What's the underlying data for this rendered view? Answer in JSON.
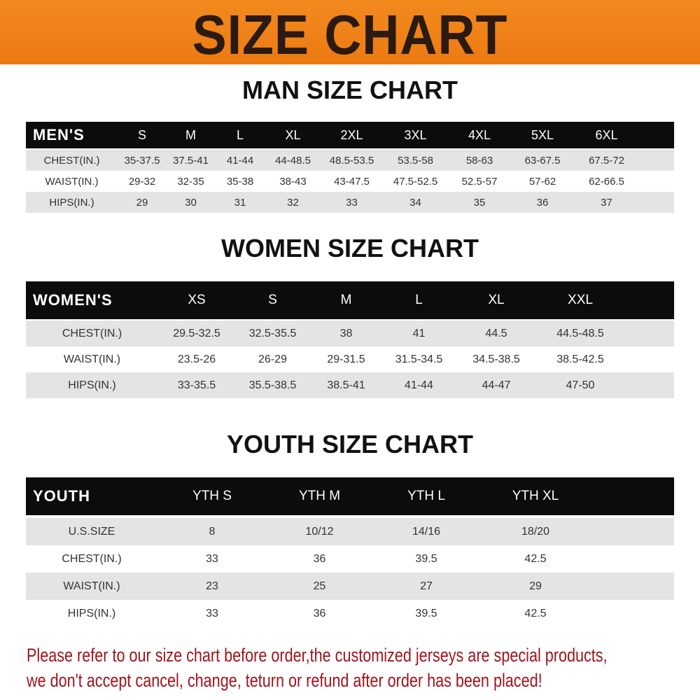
{
  "banner": {
    "title": "SIZE CHART",
    "color": "#f08418"
  },
  "men": {
    "title": "MAN SIZE CHART",
    "header": [
      "MEN'S",
      "S",
      "M",
      "L",
      "XL",
      "2XL",
      "3XL",
      "4XL",
      "5XL",
      "6XL"
    ],
    "rows": [
      [
        "CHEST(IN.)",
        "35-37.5",
        "37.5-41",
        "41-44",
        "44-48.5",
        "48.5-53.5",
        "53.5-58",
        "58-63",
        "63-67.5",
        "67.5-72"
      ],
      [
        "WAIST(IN.)",
        "29-32",
        "32-35",
        "35-38",
        "38-43",
        "43-47.5",
        "47.5-52.5",
        "52.5-57",
        "57-62",
        "62-66.5"
      ],
      [
        "HIPS(IN.)",
        "29",
        "30",
        "31",
        "32",
        "33",
        "34",
        "35",
        "36",
        "37"
      ]
    ]
  },
  "women": {
    "title": "WOMEN SIZE CHART",
    "header": [
      "WOMEN'S",
      "XS",
      "S",
      "M",
      "L",
      "XL",
      "XXL"
    ],
    "rows": [
      [
        "CHEST(IN.)",
        "29.5-32.5",
        "32.5-35.5",
        "38",
        "41",
        "44.5",
        "44.5-48.5"
      ],
      [
        "WAIST(IN.)",
        "23.5-26",
        "26-29",
        "29-31.5",
        "31.5-34.5",
        "34.5-38.5",
        "38.5-42.5"
      ],
      [
        "HIPS(IN.)",
        "33-35.5",
        "35.5-38.5",
        "38.5-41",
        "41-44",
        "44-47",
        "47-50"
      ]
    ]
  },
  "youth": {
    "title": "YOUTH SIZE CHART",
    "header": [
      "YOUTH",
      "YTH S",
      "YTH M",
      "YTH L",
      "YTH XL"
    ],
    "rows": [
      [
        "U.S.SIZE",
        "8",
        "10/12",
        "14/16",
        "18/20"
      ],
      [
        "CHEST(IN.)",
        "33",
        "36",
        "39.5",
        "42.5"
      ],
      [
        "WAIST(IN.)",
        "23",
        "25",
        "27",
        "29"
      ],
      [
        "HIPS(IN.)",
        "33",
        "36",
        "39.5",
        "42.5"
      ]
    ]
  },
  "notice": {
    "line1": "Please refer to our size chart before order,the customized jerseys are special products,",
    "line2": "we don't accept cancel, change, teturn or refund after order has been placed!",
    "color": "#a0141c"
  }
}
